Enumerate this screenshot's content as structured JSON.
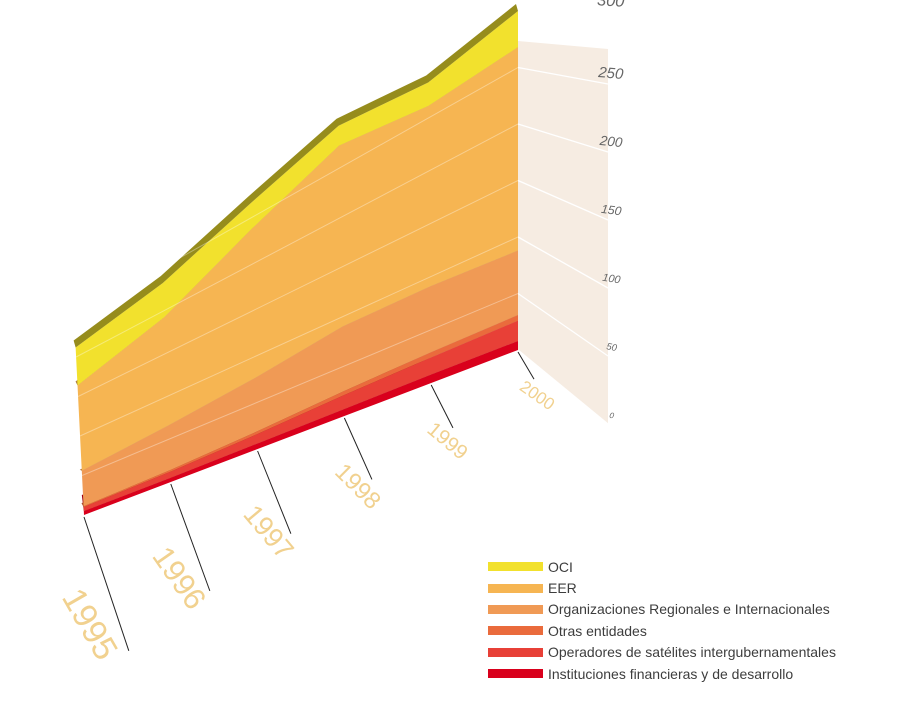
{
  "chart_data": {
    "type": "area",
    "stacked": true,
    "three_d": true,
    "categories": [
      "1995",
      "1996",
      "1997",
      "1998",
      "1999",
      "2000"
    ],
    "y_ticks": [
      0,
      50,
      100,
      150,
      200,
      250,
      300
    ],
    "ylim": [
      0,
      300
    ],
    "grid": true,
    "legend_position": "bottom-right",
    "series": [
      {
        "name": "Instituciones financieras y de desarrollo",
        "color": "#d9001c",
        "values": [
          5,
          5,
          6,
          7,
          8,
          8
        ]
      },
      {
        "name": "Operadores de satélites intergubernamentales",
        "color": "#e84037",
        "values": [
          5,
          7,
          10,
          14,
          16,
          18
        ]
      },
      {
        "name": "Otras entidades",
        "color": "#ea6b3c",
        "values": [
          1,
          2,
          3,
          4,
          5,
          5
        ]
      },
      {
        "name": "Organizaciones Regionales e Internacionales",
        "color": "#f09a55",
        "values": [
          45,
          52,
          58,
          65,
          62,
          57
        ]
      },
      {
        "name": "EER",
        "color": "#f6b552",
        "values": [
          108,
          126,
          160,
          182,
          170,
          180
        ]
      },
      {
        "name": "OCI",
        "color": "#f2e12d",
        "values": [
          48,
          40,
          28,
          20,
          22,
          32
        ]
      }
    ]
  }
}
